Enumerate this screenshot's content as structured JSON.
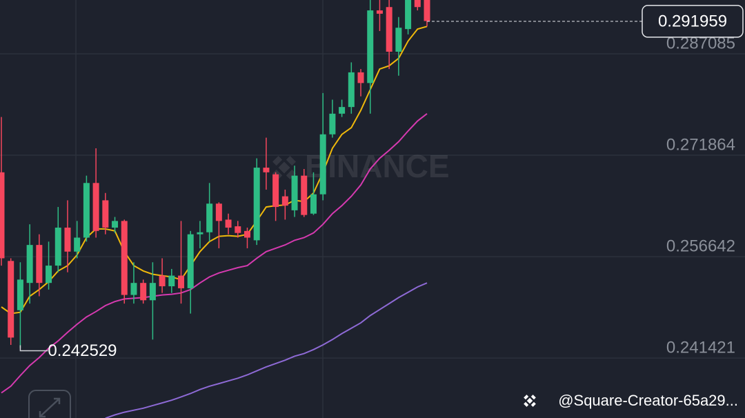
{
  "chart_data": {
    "type": "candlestick",
    "open": [
      0.2693,
      0.256,
      0.2486,
      0.2527,
      0.2584,
      0.2527,
      0.2553,
      0.261,
      0.2574,
      0.2595,
      0.2677,
      0.2651,
      0.261,
      0.262,
      0.2509,
      0.2527,
      0.2501,
      0.2538,
      0.2522,
      0.2538,
      0.2519,
      0.26,
      0.2603,
      0.2646,
      0.2622,
      0.2612,
      0.2605,
      0.2591,
      0.27,
      0.269,
      0.2657,
      0.2636,
      0.2688,
      0.2631,
      0.266,
      0.275,
      0.2781,
      0.2791,
      0.2843,
      0.2827,
      0.2936,
      0.2941,
      0.2874,
      0.2908,
      0.296,
      0.2965
    ],
    "high": [
      0.2776,
      0.2564,
      0.2558,
      0.2615,
      0.26,
      0.2589,
      0.2641,
      0.2651,
      0.262,
      0.2688,
      0.2729,
      0.2662,
      0.2626,
      0.2622,
      0.2558,
      0.2532,
      0.2558,
      0.2564,
      0.2548,
      0.262,
      0.2605,
      0.262,
      0.2677,
      0.2648,
      0.2631,
      0.262,
      0.261,
      0.2714,
      0.2745,
      0.2693,
      0.2667,
      0.2703,
      0.2698,
      0.2693,
      0.2812,
      0.2802,
      0.2802,
      0.2858,
      0.2848,
      0.2955,
      0.2955,
      0.2955,
      0.2926,
      0.296,
      0.2965,
      0.297
    ],
    "low": [
      0.2553,
      0.2434,
      0.2429,
      0.2496,
      0.2507,
      0.2517,
      0.2543,
      0.2543,
      0.2564,
      0.2589,
      0.2595,
      0.26,
      0.2602,
      0.2496,
      0.2496,
      0.2496,
      0.2442,
      0.2512,
      0.2512,
      0.2496,
      0.2481,
      0.2579,
      0.2589,
      0.2579,
      0.26,
      0.2595,
      0.2579,
      0.2584,
      0.2667,
      0.262,
      0.2622,
      0.2626,
      0.2626,
      0.2629,
      0.2651,
      0.2745,
      0.2776,
      0.2781,
      0.2807,
      0.2781,
      0.2905,
      0.2848,
      0.2838,
      0.29,
      0.2936,
      0.2912
    ],
    "close": [
      0.2564,
      0.2445,
      0.2532,
      0.2584,
      0.2527,
      0.2553,
      0.261,
      0.2574,
      0.2595,
      0.2677,
      0.2605,
      0.261,
      0.262,
      0.2509,
      0.2527,
      0.2501,
      0.2527,
      0.2522,
      0.2538,
      0.2519,
      0.26,
      0.2603,
      0.2646,
      0.262,
      0.261,
      0.2602,
      0.2595,
      0.27,
      0.2693,
      0.2641,
      0.2643,
      0.2688,
      0.2629,
      0.266,
      0.275,
      0.2781,
      0.2791,
      0.2843,
      0.2827,
      0.2936,
      0.2931,
      0.2874,
      0.291,
      0.2955,
      0.2941,
      0.292
    ],
    "up_color": "#2ebd85",
    "down_color": "#f6465d",
    "series": [
      {
        "color": "#f0b90b",
        "values": [
          0.2491,
          0.2481,
          0.2483,
          0.2507,
          0.2517,
          0.2529,
          0.2545,
          0.2553,
          0.2569,
          0.2595,
          0.2608,
          0.2608,
          0.2605,
          0.2574,
          0.2553,
          0.2545,
          0.254,
          0.2538,
          0.2536,
          0.2532,
          0.2553,
          0.2574,
          0.2589,
          0.2597,
          0.2598,
          0.2597,
          0.26,
          0.262,
          0.2641,
          0.2643,
          0.2644,
          0.2651,
          0.2649,
          0.2662,
          0.2693,
          0.2729,
          0.275,
          0.276,
          0.2786,
          0.2817,
          0.2848,
          0.2853,
          0.2864,
          0.289,
          0.2908,
          0.2912
        ]
      },
      {
        "color": "#d63ab0",
        "values": [
          0.2362,
          0.2372,
          0.2388,
          0.2403,
          0.2415,
          0.2429,
          0.244,
          0.2453,
          0.2465,
          0.2476,
          0.2484,
          0.2493,
          0.2499,
          0.2503,
          0.2504,
          0.2505,
          0.2507,
          0.2509,
          0.251,
          0.2512,
          0.2517,
          0.2527,
          0.2536,
          0.2542,
          0.2546,
          0.255,
          0.2553,
          0.2564,
          0.2574,
          0.2579,
          0.2584,
          0.2591,
          0.2595,
          0.2602,
          0.2615,
          0.2631,
          0.2643,
          0.2657,
          0.2674,
          0.2698,
          0.2714,
          0.2726,
          0.2739,
          0.2755,
          0.277,
          0.2781
        ]
      },
      {
        "color": "#8e6ad6",
        "values": [
          null,
          null,
          null,
          null,
          null,
          null,
          null,
          null,
          null,
          null,
          null,
          0.2324,
          0.2329,
          0.2333,
          0.2336,
          0.2339,
          0.2343,
          0.2347,
          0.2351,
          0.2356,
          0.2361,
          0.2367,
          0.2372,
          0.2376,
          0.238,
          0.2384,
          0.2389,
          0.2395,
          0.2401,
          0.2406,
          0.2411,
          0.2417,
          0.2421,
          0.2427,
          0.2434,
          0.2442,
          0.2451,
          0.2459,
          0.2467,
          0.2478,
          0.2487,
          0.2496,
          0.2505,
          0.2513,
          0.2521,
          0.2527
        ]
      }
    ],
    "ylim": [
      0.23243,
      0.29516
    ],
    "yticks": [
      0.287085,
      0.271864,
      0.256642,
      0.241421
    ],
    "last_price": 0.291959,
    "low_price": 0.242529,
    "watermark": "BINANCE",
    "footer": "@Square-Creator-65a29..."
  }
}
